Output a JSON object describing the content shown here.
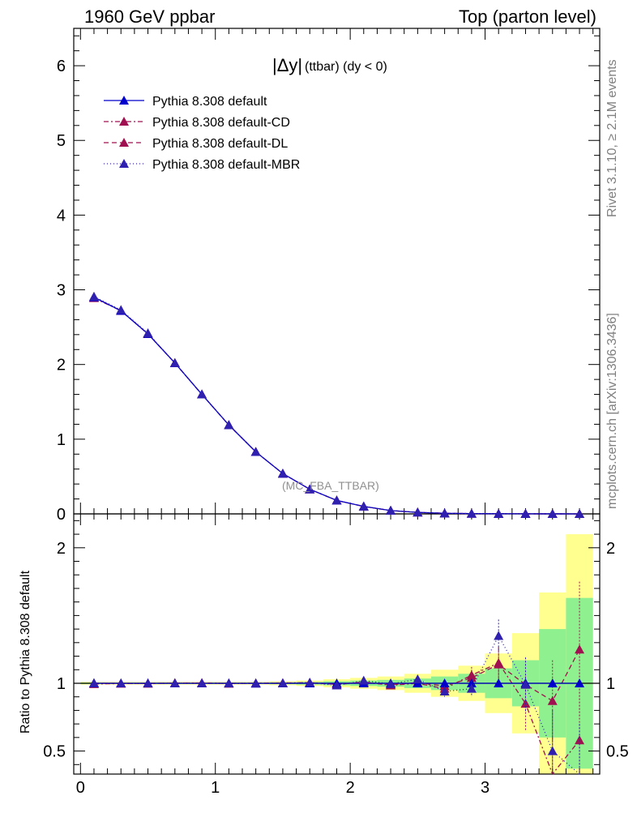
{
  "header": {
    "left": "1960 GeV ppbar",
    "right": "Top (parton level)"
  },
  "side_labels": {
    "rivet": "Rivet 3.1.10, ≥ 2.1M events",
    "mcplots": "mcplots.cern.ch [arXiv:1306.3436]"
  },
  "chart_data": {
    "type": "line",
    "title_main": "|Δy|",
    "title_sub": "(ttbar) (dy < 0)",
    "watermark": "(MC_FBA_TTBAR)",
    "xlabel": "",
    "ylabel": "",
    "ratio_ylabel": "Ratio to Pythia 8.308 default",
    "xlim": [
      -0.05,
      3.85
    ],
    "ylim": [
      0,
      6.5
    ],
    "ratio_ylim": [
      0.33,
      2.25
    ],
    "x_ticks": [
      0,
      1,
      2,
      3
    ],
    "y_ticks": [
      0,
      1,
      2,
      3,
      4,
      5,
      6
    ],
    "ratio_y_ticks": [
      0.5,
      1,
      2
    ],
    "x": [
      0.1,
      0.3,
      0.5,
      0.7,
      0.9,
      1.1,
      1.3,
      1.5,
      1.7,
      1.9,
      2.1,
      2.3,
      2.5,
      2.7,
      2.9,
      3.1,
      3.3,
      3.5,
      3.7
    ],
    "bin_edges": [
      0.0,
      0.2,
      0.4,
      0.6,
      0.8,
      1.0,
      1.2,
      1.4,
      1.6,
      1.8,
      2.0,
      2.2,
      2.4,
      2.6,
      2.8,
      3.0,
      3.2,
      3.4,
      3.6,
      3.8
    ],
    "series": [
      {
        "name": "Pythia 8.308 default",
        "color": "#0000cc",
        "dash": "",
        "values": [
          2.9,
          2.72,
          2.41,
          2.02,
          1.6,
          1.19,
          0.83,
          0.54,
          0.33,
          0.18,
          0.1,
          0.045,
          0.02,
          0.008,
          0.004,
          0.002,
          0.001,
          0.0005,
          0.0002
        ],
        "ratio": [
          1,
          1,
          1,
          1,
          1,
          1,
          1,
          1,
          1,
          1,
          1,
          1,
          1,
          1,
          1,
          1,
          1,
          1,
          1
        ]
      },
      {
        "name": "Pythia 8.308 default-CD",
        "color": "#a01050",
        "dash": "6,3,2,3",
        "values": [
          2.89,
          2.72,
          2.41,
          2.02,
          1.6,
          1.19,
          0.83,
          0.54,
          0.33,
          0.18,
          0.1,
          0.044,
          0.02,
          0.008,
          0.004,
          0.002,
          0.001,
          0.0005,
          0.0002
        ],
        "ratio": [
          0.995,
          0.998,
          1.0,
          1.0,
          1.003,
          0.998,
          1.0,
          1.002,
          1.005,
          0.99,
          1.01,
          0.985,
          1.0,
          0.96,
          1.06,
          1.15,
          0.85,
          0.3,
          0.58
        ]
      },
      {
        "name": "Pythia 8.308 default-DL",
        "color": "#a01050",
        "dash": "6,4",
        "values": [
          2.9,
          2.72,
          2.41,
          2.02,
          1.6,
          1.19,
          0.83,
          0.54,
          0.33,
          0.18,
          0.1,
          0.045,
          0.02,
          0.008,
          0.004,
          0.002,
          0.001,
          0.0005,
          0.0002
        ],
        "ratio": [
          1.0,
          1.0,
          0.998,
          1.002,
          1.0,
          1.0,
          1.0,
          1.0,
          1.003,
          0.995,
          1.005,
          0.99,
          1.005,
          0.98,
          1.04,
          1.14,
          0.99,
          0.87,
          1.25
        ]
      },
      {
        "name": "Pythia 8.308 default-MBR",
        "color": "#3020b0",
        "dash": "1,3",
        "values": [
          2.91,
          2.73,
          2.42,
          2.02,
          1.6,
          1.19,
          0.83,
          0.54,
          0.33,
          0.18,
          0.1,
          0.045,
          0.02,
          0.008,
          0.004,
          0.002,
          0.001,
          0.0005,
          0.0002
        ],
        "ratio": [
          1.002,
          1.0,
          1.0,
          1.0,
          1.0,
          1.0,
          0.998,
          1.0,
          1.005,
          0.985,
          1.02,
          0.995,
          1.03,
          0.94,
          0.96,
          1.35,
          0.99,
          0.5,
          0.2
        ]
      }
    ],
    "ratio_bands": {
      "green_lower": [
        0.995,
        0.995,
        0.995,
        0.995,
        0.995,
        0.995,
        0.995,
        0.993,
        0.99,
        0.985,
        0.98,
        0.975,
        0.965,
        0.95,
        0.93,
        0.89,
        0.83,
        0.6,
        0.37
      ],
      "green_upper": [
        1.005,
        1.005,
        1.005,
        1.005,
        1.005,
        1.005,
        1.005,
        1.007,
        1.01,
        1.015,
        1.02,
        1.025,
        1.035,
        1.05,
        1.07,
        1.11,
        1.17,
        1.4,
        1.63
      ],
      "yellow_lower": [
        0.99,
        0.99,
        0.99,
        0.99,
        0.99,
        0.99,
        0.99,
        0.986,
        0.98,
        0.97,
        0.96,
        0.95,
        0.93,
        0.9,
        0.87,
        0.78,
        0.63,
        0.33,
        0.33
      ],
      "yellow_upper": [
        1.01,
        1.01,
        1.01,
        1.01,
        1.01,
        1.01,
        1.01,
        1.014,
        1.02,
        1.03,
        1.04,
        1.05,
        1.07,
        1.1,
        1.13,
        1.22,
        1.37,
        1.67,
        2.1
      ]
    },
    "ratio_errors": [
      0,
      0,
      0,
      0,
      0,
      0,
      0,
      0,
      0.01,
      0.01,
      0.015,
      0.02,
      0.03,
      0.04,
      0.06,
      0.12,
      0.2,
      0.3,
      0.5
    ],
    "band_colors": {
      "green": "#8ef08e",
      "yellow": "#ffff90"
    }
  }
}
